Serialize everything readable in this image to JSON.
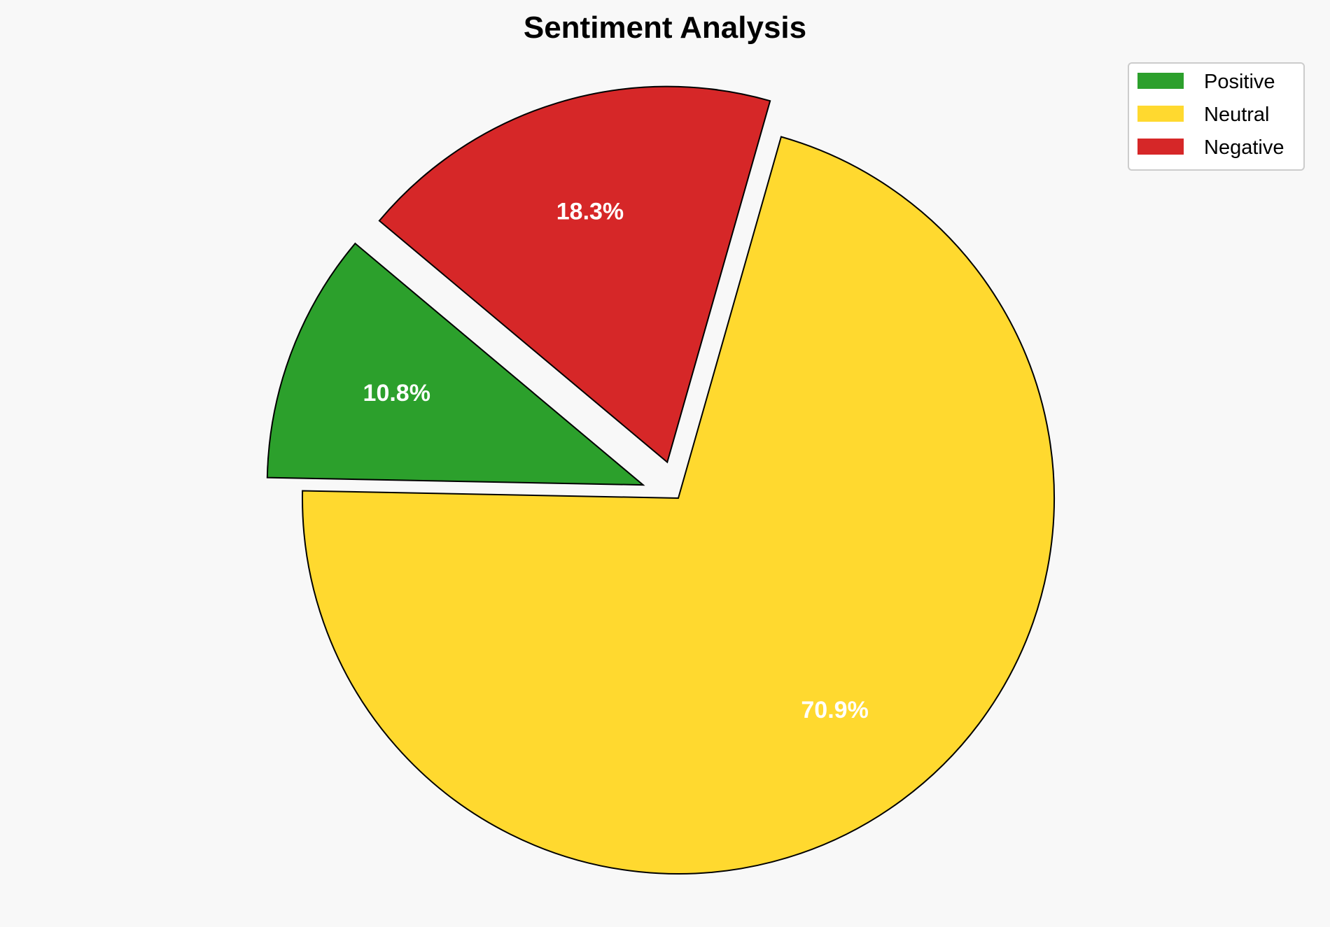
{
  "chart_data": {
    "type": "pie",
    "title": "Sentiment Analysis",
    "categories": [
      "Positive",
      "Neutral",
      "Negative"
    ],
    "values": [
      10.8,
      70.9,
      18.3
    ],
    "labels": [
      "10.8%",
      "70.9%",
      "18.3%"
    ],
    "colors": [
      "#2ca02c",
      "#ffd92f",
      "#d62728"
    ],
    "explode": [
      0.1,
      0,
      0.1
    ],
    "start_angle": 140,
    "counterclockwise": true,
    "legend_placement": "top-right",
    "background": "#f8f8f8"
  }
}
